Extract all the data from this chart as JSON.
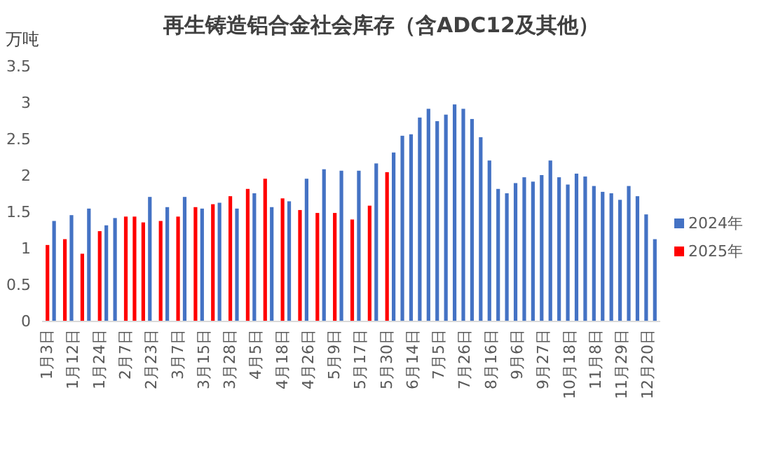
{
  "chart_data": {
    "type": "bar",
    "title": "再生铸造铝合金社会库存（含ADC12及其他）",
    "ylabel": "万吨",
    "categories": [
      "1月3日",
      null,
      null,
      "1月12日",
      null,
      null,
      "1月24日",
      null,
      null,
      "2月7日",
      null,
      null,
      "2月23日",
      null,
      null,
      "3月7日",
      null,
      null,
      "3月15日",
      null,
      null,
      "3月28日",
      null,
      null,
      "4月5日",
      null,
      null,
      "4月18日",
      null,
      null,
      "4月26日",
      null,
      null,
      "5月9日",
      null,
      null,
      "5月17日",
      null,
      null,
      "5月30日",
      null,
      null,
      "6月14日",
      null,
      null,
      "7月5日",
      null,
      null,
      "7月26日",
      null,
      null,
      "8月16日",
      null,
      null,
      "9月6日",
      null,
      null,
      "9月27日",
      null,
      null,
      "10月18日",
      null,
      null,
      "11月8日",
      null,
      null,
      "11月29日",
      null,
      null,
      "12月20日",
      null
    ],
    "series": [
      {
        "name": "2024年",
        "color": "#4472c4",
        "values": [
          null,
          1.37,
          null,
          1.45,
          null,
          1.54,
          null,
          1.31,
          1.41,
          null,
          null,
          null,
          1.7,
          null,
          1.56,
          null,
          1.7,
          null,
          1.54,
          null,
          1.62,
          null,
          1.54,
          null,
          1.75,
          null,
          1.56,
          null,
          1.64,
          null,
          1.95,
          null,
          2.08,
          null,
          2.06,
          null,
          2.06,
          null,
          2.16,
          null,
          2.31,
          2.54,
          2.56,
          2.79,
          2.91,
          2.74,
          2.83,
          2.97,
          2.91,
          2.77,
          2.52,
          2.2,
          1.81,
          1.75,
          1.89,
          1.97,
          1.91,
          2.0,
          2.2,
          1.97,
          1.87,
          2.02,
          1.98,
          1.85,
          1.77,
          1.75,
          1.66,
          1.85,
          1.71,
          1.46,
          1.12
        ]
      },
      {
        "name": "2025年",
        "color": "#ff0000",
        "values": [
          1.04,
          null,
          1.12,
          null,
          0.92,
          null,
          1.23,
          null,
          null,
          1.43,
          1.43,
          1.35,
          null,
          1.37,
          null,
          1.43,
          null,
          1.56,
          null,
          1.6,
          null,
          1.71,
          null,
          1.81,
          null,
          1.95,
          null,
          1.68,
          null,
          1.52,
          null,
          1.48,
          null,
          1.48,
          null,
          1.39,
          null,
          1.58,
          null,
          2.04,
          null,
          null,
          null,
          null,
          null,
          null,
          null,
          null,
          null,
          null,
          null,
          null,
          null,
          null,
          null,
          null,
          null,
          null,
          null,
          null,
          null,
          null,
          null,
          null,
          null,
          null,
          null,
          null,
          null,
          null,
          null
        ]
      }
    ],
    "ylim": [
      0,
      3.5
    ],
    "yticks": [
      0,
      0.5,
      1,
      1.5,
      2,
      2.5,
      3,
      3.5
    ],
    "legend": "right"
  }
}
